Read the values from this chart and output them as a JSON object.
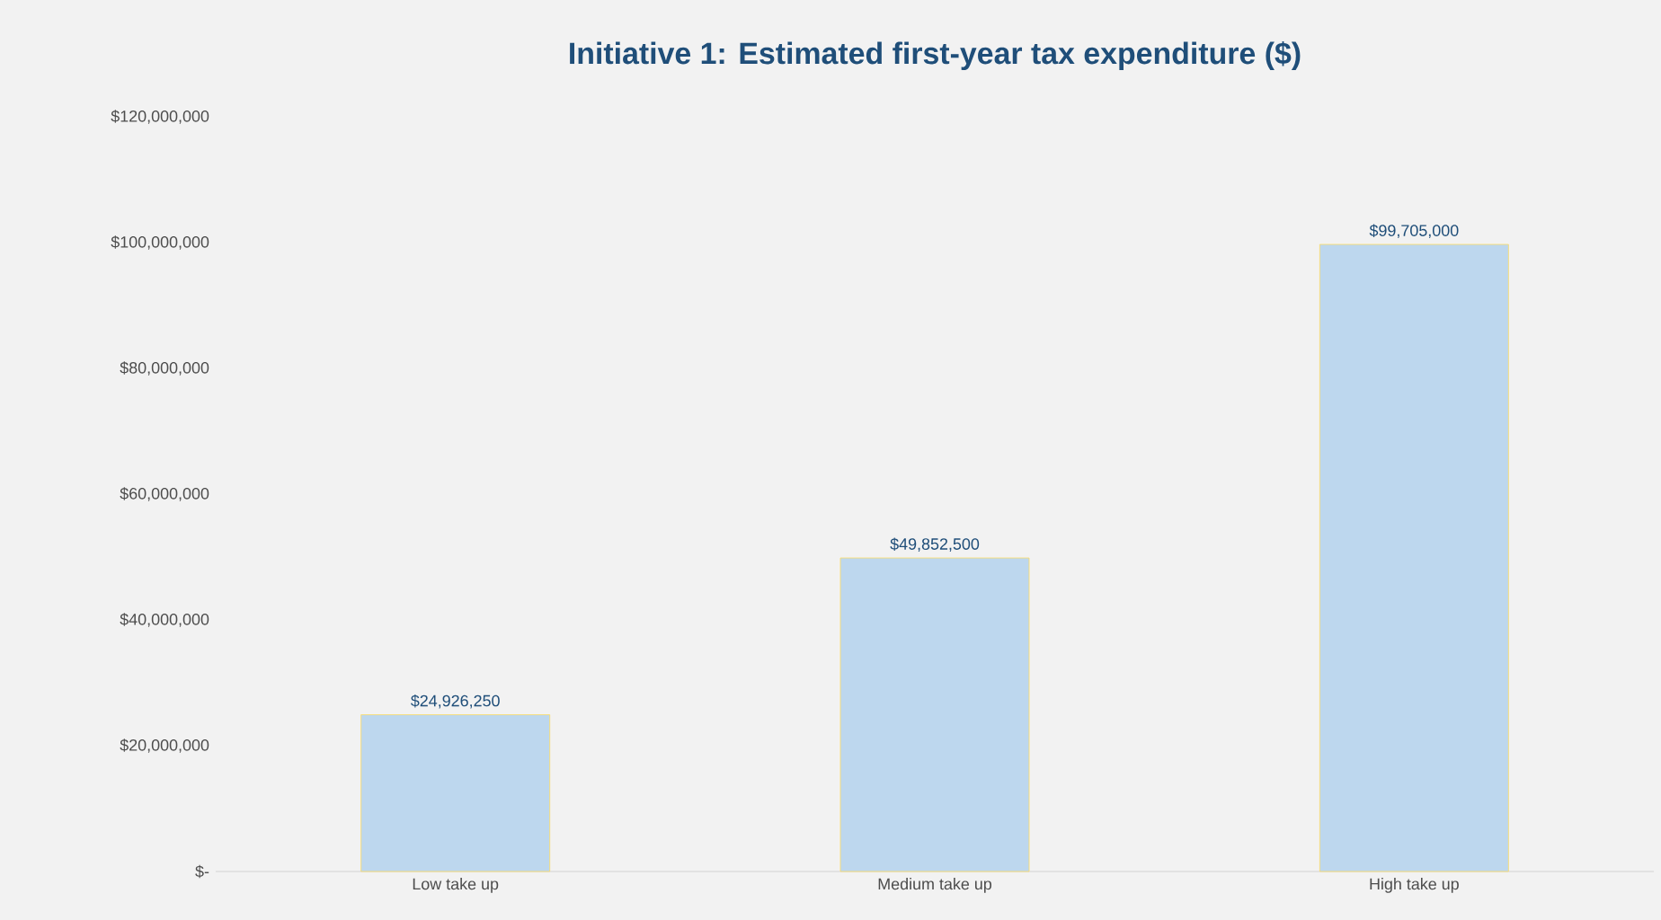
{
  "chart_data": {
    "type": "bar",
    "title": "Initiative 1: Estimated first-year tax expenditure ($)",
    "categories": [
      "Low take up",
      "Medium take up",
      "High take up"
    ],
    "values": [
      24926250,
      49852500,
      99705000
    ],
    "value_labels": [
      "$24,926,250",
      "$49,852,500",
      "$99,705,000"
    ],
    "color": "#bdd7ee",
    "ylim": [
      0,
      120000000
    ],
    "yticks": [
      {
        "value": 0,
        "label": "$-"
      },
      {
        "value": 20000000,
        "label": "$20,000,000"
      },
      {
        "value": 40000000,
        "label": "$40,000,000"
      },
      {
        "value": 60000000,
        "label": "$60,000,000"
      },
      {
        "value": 80000000,
        "label": "$80,000,000"
      },
      {
        "value": 100000000,
        "label": "$100,000,000"
      },
      {
        "value": 120000000,
        "label": "$120,000,000"
      }
    ],
    "grid": false
  }
}
